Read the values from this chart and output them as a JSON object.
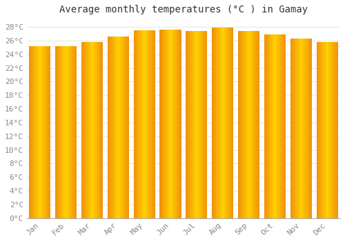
{
  "title": "Average monthly temperatures (°C ) in Gamay",
  "months": [
    "Jan",
    "Feb",
    "Mar",
    "Apr",
    "May",
    "Jun",
    "Jul",
    "Aug",
    "Sep",
    "Oct",
    "Nov",
    "Dec"
  ],
  "values": [
    25.2,
    25.2,
    25.8,
    26.6,
    27.5,
    27.6,
    27.4,
    27.9,
    27.4,
    26.9,
    26.3,
    25.8
  ],
  "ylim": [
    0,
    29
  ],
  "ytick_step": 2,
  "bar_color_center": "#FFD000",
  "bar_color_edge": "#F0900A",
  "background_color": "#FFFFFF",
  "grid_color": "#E8E8E8",
  "title_fontsize": 10,
  "tick_fontsize": 8,
  "font_family": "monospace"
}
